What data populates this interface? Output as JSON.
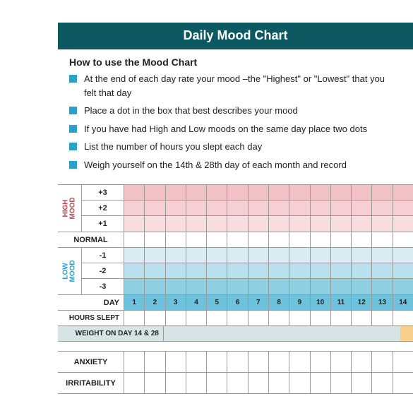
{
  "title": "Daily Mood Chart",
  "instructions_heading": "How to use the Mood Chart",
  "bullets": [
    "At the end of each day rate your mood –the \"Highest\" or \"Lowest\" that you felt that day",
    "Place a dot in the box that best describes your mood",
    "If you have had High and Low moods on the same day place two dots",
    "List the number of hours you slept each day",
    "Weigh yourself on the 14th & 28th day of each month and record"
  ],
  "labels": {
    "high_mood": "HIGH\nMOOD",
    "low_mood": "LOW\nMOOD",
    "normal": "NORMAL",
    "day": "DAY",
    "hours_slept": "HOURS SLEPT",
    "weight": "WEIGHT ON DAY 14 & 28",
    "anxiety": "ANXIETY",
    "irritability": "IRRITABILITY"
  },
  "levels": {
    "p3": "+3",
    "p2": "+2",
    "p1": "+1",
    "m1": "-1",
    "m2": "-2",
    "m3": "-3"
  },
  "day_count": 14,
  "colors": {
    "header_bg": "#0d5961",
    "bullet": "#2da0c7",
    "high": [
      "#f3c2c6",
      "#f6cfd2",
      "#f9dde0"
    ],
    "low": [
      "#d9edf5",
      "#b9e0ee",
      "#8ecfe2"
    ],
    "day_row": "#6cc3db",
    "weight_row": "#d6e4e6",
    "weight_mark": "#f9cf8e",
    "high_text": "#c44858",
    "low_text": "#2da0c7"
  }
}
